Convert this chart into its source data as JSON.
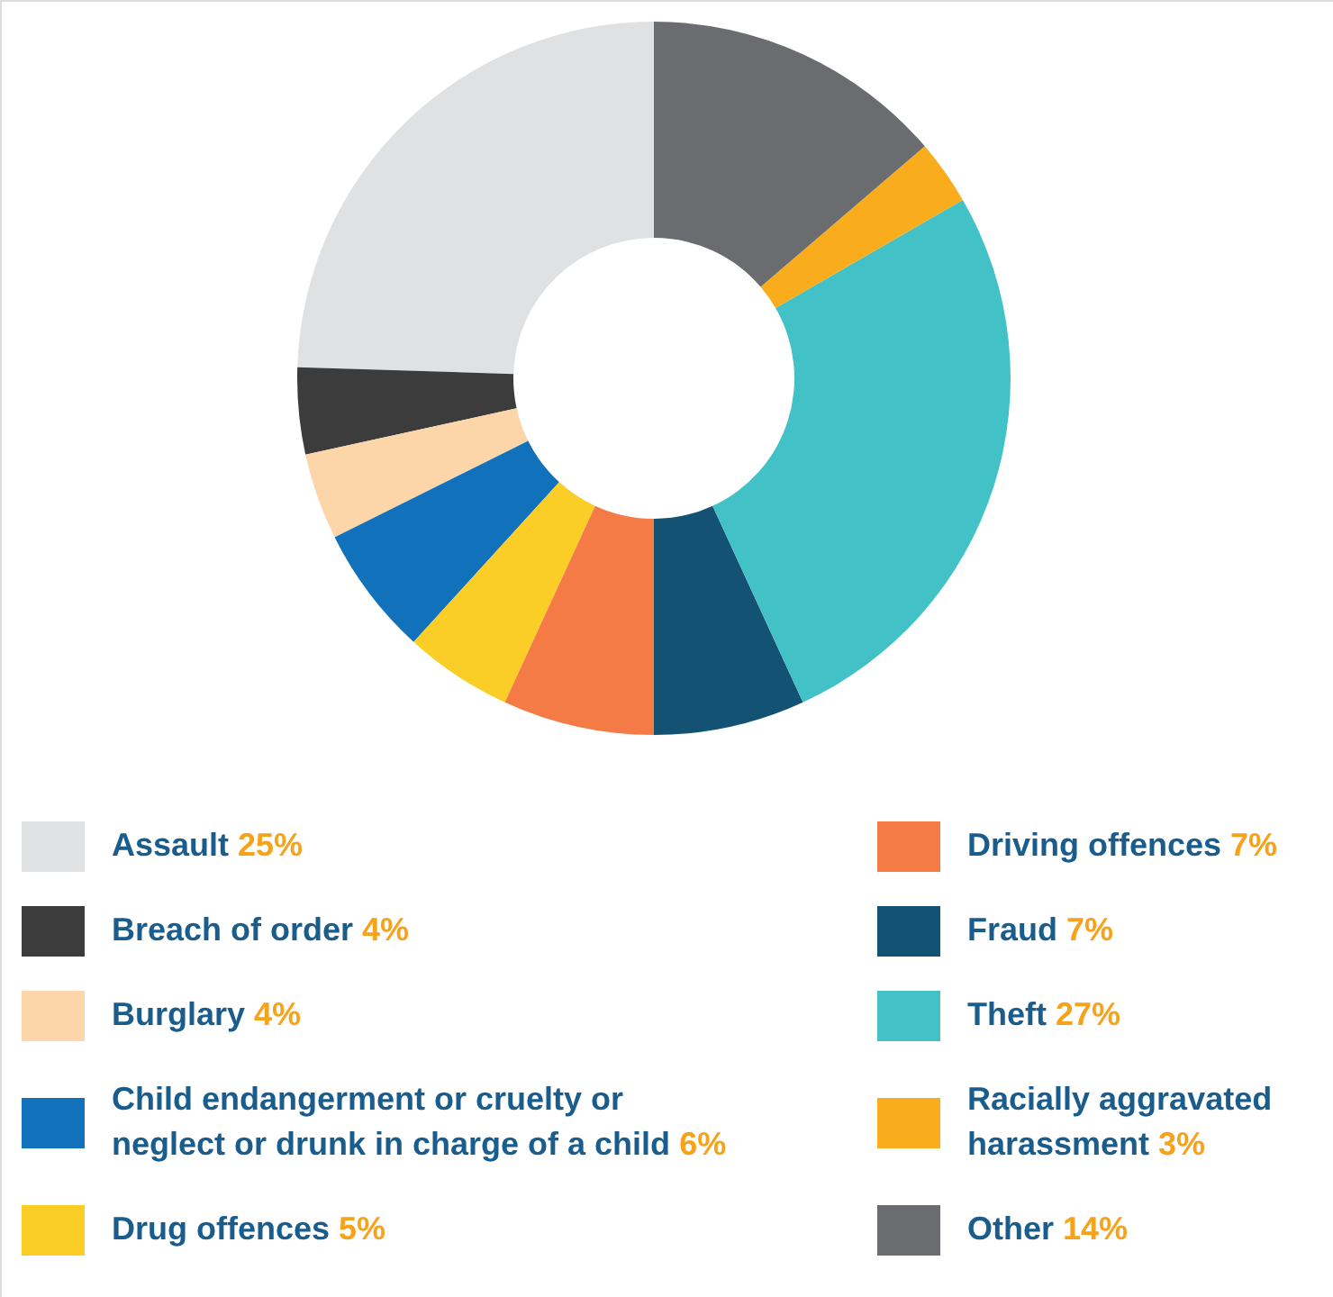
{
  "chart_data": {
    "type": "donut",
    "categories": [
      "Assault",
      "Breach of order",
      "Burglary",
      "Child endangerment or cruelty or neglect or drunk in charge of a child",
      "Drug offences",
      "Driving offences",
      "Fraud",
      "Theft",
      "Racially aggravated harassment",
      "Other"
    ],
    "values": [
      25,
      4,
      4,
      6,
      5,
      7,
      7,
      27,
      3,
      14
    ],
    "value_labels": [
      "25%",
      "4%",
      "4%",
      "6%",
      "5%",
      "7%",
      "7%",
      "27%",
      "3%",
      "14%"
    ],
    "colors": [
      "#e0e1e3",
      "#3c3c3c",
      "#fcd5a8",
      "#1172bb",
      "#fbcd27",
      "#f47b45",
      "#135272",
      "#42c1c7",
      "#f9ac1c",
      "#6b6c70"
    ],
    "legend": "bottom"
  }
}
